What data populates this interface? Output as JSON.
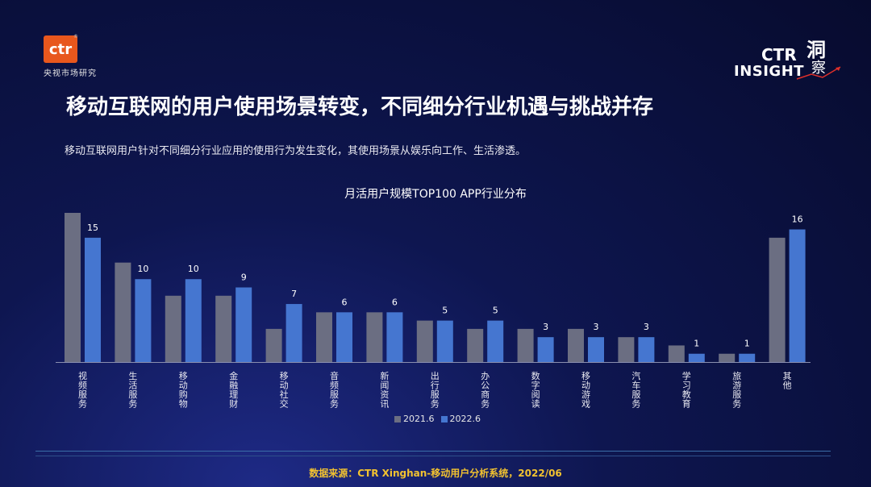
{
  "brand": {
    "logo_text": "ctr",
    "logo_reg": "®",
    "logo_subtitle": "央视市场研究",
    "insight_ctr": "CTR",
    "insight_word": "INSIGHT",
    "insight_cn1": "洞",
    "insight_cn2": "察"
  },
  "header": {
    "title": "移动互联网的用户使用场景转变，不同细分行业机遇与挑战并存",
    "subtitle": "移动互联网用户针对不同细分行业应用的使用行为发生变化，其使用场景从娱乐向工作、生活渗透。"
  },
  "footer": {
    "source": "数据来源：CTR Xinghan-移动用户分析系统，2022/06"
  },
  "chart_data": {
    "type": "bar",
    "title": "月活用户规模TOP100 APP行业分布",
    "categories": [
      "视频服务",
      "生活服务",
      "移动购物",
      "金融理财",
      "移动社交",
      "音频服务",
      "新闻资讯",
      "出行服务",
      "办公商务",
      "数字阅读",
      "移动游戏",
      "汽车服务",
      "学习教育",
      "旅游服务",
      "其他"
    ],
    "series": [
      {
        "name": "2021.6",
        "color": "#6b6e82",
        "values": [
          18,
          12,
          8,
          8,
          4,
          6,
          6,
          5,
          4,
          4,
          4,
          3,
          2,
          1,
          15
        ]
      },
      {
        "name": "2022.6",
        "color": "#4576d0",
        "values": [
          15,
          10,
          10,
          9,
          7,
          6,
          6,
          5,
          5,
          3,
          3,
          3,
          1,
          1,
          16
        ]
      }
    ],
    "data_labels": [
      "15",
      "10",
      "10",
      "9",
      "7",
      "6",
      "6",
      "5",
      "5",
      "3",
      "3",
      "3",
      "1",
      "1",
      "16"
    ],
    "ylim": [
      0,
      18
    ],
    "grid": false,
    "legend_position": "bottom"
  }
}
